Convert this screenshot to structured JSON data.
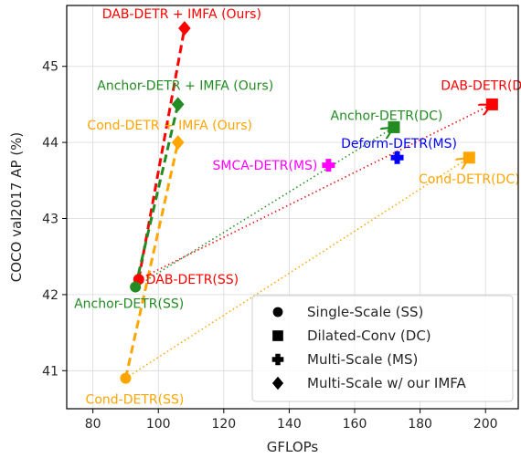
{
  "chart_data": {
    "type": "scatter",
    "xlabel": "GFLOPs",
    "ylabel": "COCO val2017 AP (%)",
    "xlim": [
      72,
      210
    ],
    "ylim": [
      40.5,
      45.8
    ],
    "xticks": [
      80,
      100,
      120,
      140,
      160,
      180,
      200
    ],
    "yticks": [
      41,
      42,
      43,
      44,
      45
    ],
    "grid": true,
    "colors": {
      "dab": "#ff0000",
      "anchor": "#228b22",
      "cond": "#ffa500",
      "smca": "#ff00ff",
      "deform": "#0000ff"
    },
    "points": [
      {
        "id": "dab-ss",
        "label": "DAB-DETR(SS)",
        "x": 94,
        "y": 42.2,
        "marker": "circle",
        "color": "#ff0000"
      },
      {
        "id": "anchor-ss",
        "label": "Anchor-DETR(SS)",
        "x": 93,
        "y": 42.1,
        "marker": "circle",
        "color": "#228b22"
      },
      {
        "id": "cond-ss",
        "label": "Cond-DETR(SS)",
        "x": 90,
        "y": 40.9,
        "marker": "circle",
        "color": "#ffa500"
      },
      {
        "id": "dab-dc",
        "label": "DAB-DETR(DC)",
        "x": 202,
        "y": 44.5,
        "marker": "square",
        "color": "#ff0000"
      },
      {
        "id": "anchor-dc",
        "label": "Anchor-DETR(DC)",
        "x": 172,
        "y": 44.2,
        "marker": "square",
        "color": "#228b22"
      },
      {
        "id": "cond-dc",
        "label": "Cond-DETR(DC)",
        "x": 195,
        "y": 43.8,
        "marker": "square",
        "color": "#ffa500"
      },
      {
        "id": "smca-ms",
        "label": "SMCA-DETR(MS)",
        "x": 152,
        "y": 43.7,
        "marker": "plus",
        "color": "#ff00ff"
      },
      {
        "id": "deform-ms",
        "label": "Deform-DETR(MS)",
        "x": 173,
        "y": 43.8,
        "marker": "plus",
        "color": "#0000ff"
      },
      {
        "id": "dab-imfa",
        "label": "DAB-DETR + IMFA (Ours)",
        "x": 108,
        "y": 45.5,
        "marker": "diamond",
        "color": "#ff0000"
      },
      {
        "id": "anchor-imfa",
        "label": "Anchor-DETR + IMFA (Ours)",
        "x": 106,
        "y": 44.5,
        "marker": "diamond",
        "color": "#228b22"
      },
      {
        "id": "cond-imfa",
        "label": "Cond-DETR + IMFA (Ours)",
        "x": 106,
        "y": 44.0,
        "marker": "diamond",
        "color": "#ffa500"
      }
    ],
    "dashed_lines": [
      {
        "from": "dab-ss",
        "to": "dab-imfa",
        "color": "#ff0000"
      },
      {
        "from": "anchor-ss",
        "to": "anchor-imfa",
        "color": "#228b22"
      },
      {
        "from": "cond-ss",
        "to": "cond-imfa",
        "color": "#ffa500"
      }
    ],
    "dotted_arrows": [
      {
        "from": "dab-ss",
        "to": "dab-dc",
        "color": "#ff0000"
      },
      {
        "from": "anchor-ss",
        "to": "anchor-dc",
        "color": "#228b22"
      },
      {
        "from": "cond-ss",
        "to": "cond-dc",
        "color": "#ffa500"
      }
    ],
    "legend": {
      "position": "bottom-right",
      "entries": [
        {
          "marker": "circle",
          "label": "Single-Scale (SS)"
        },
        {
          "marker": "square",
          "label": "Dilated-Conv (DC)"
        },
        {
          "marker": "plus",
          "label": "Multi-Scale (MS)"
        },
        {
          "marker": "diamond",
          "label": "Multi-Scale w/ our IMFA"
        }
      ]
    }
  }
}
